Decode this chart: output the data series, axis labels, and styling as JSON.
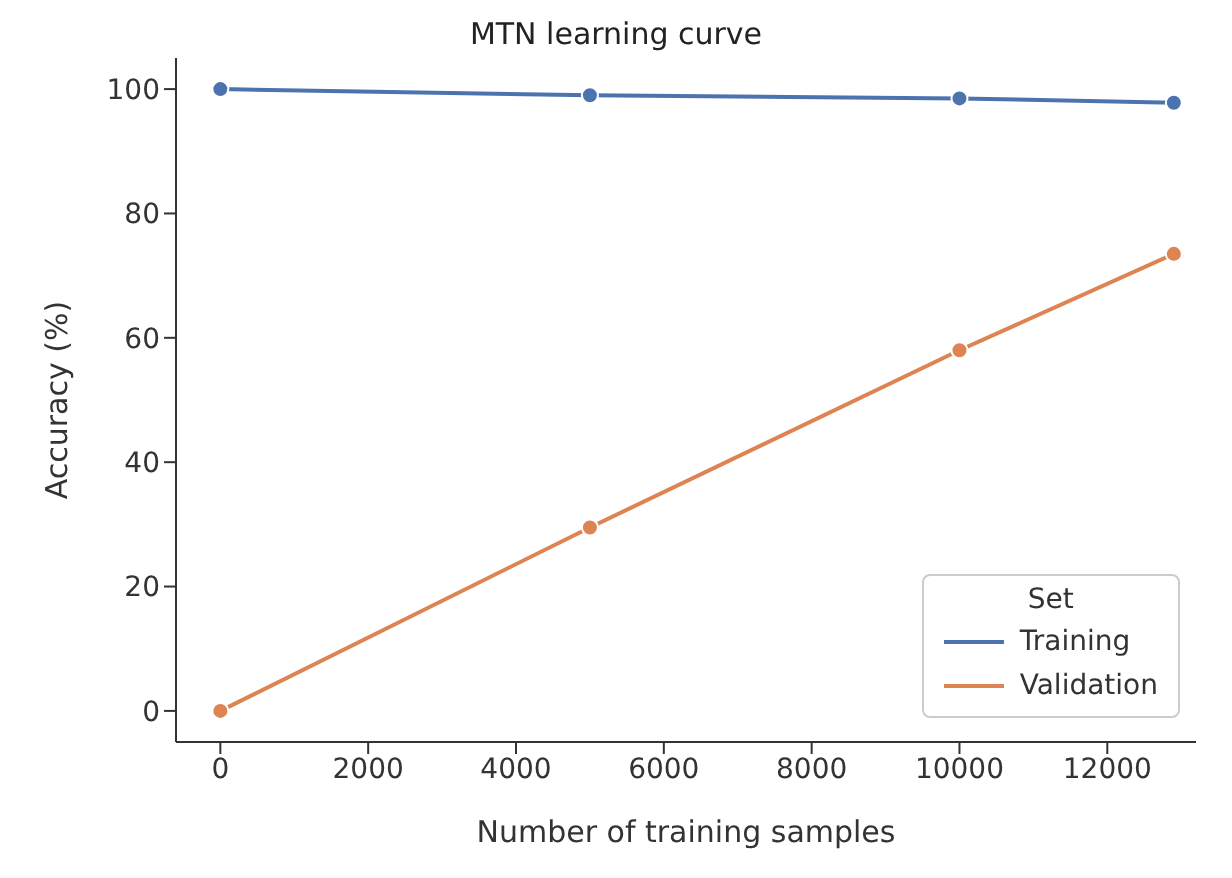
{
  "chart_data": {
    "type": "line",
    "title": "MTN learning curve",
    "xlabel": "Number of training samples",
    "ylabel": "Accuracy (%)",
    "legend_title": "Set",
    "x": [
      0,
      5000,
      10000,
      12900
    ],
    "series": [
      {
        "name": "Training",
        "color": "#4c72b0",
        "values": [
          100,
          99,
          98.5,
          97.8
        ]
      },
      {
        "name": "Validation",
        "color": "#dd8452",
        "values": [
          0,
          29.5,
          58,
          73.5
        ]
      }
    ],
    "xlim": [
      -600,
      13200
    ],
    "xticks": [
      0,
      2000,
      4000,
      6000,
      8000,
      10000,
      12000
    ],
    "ylim": [
      -5,
      105
    ],
    "yticks": [
      0,
      20,
      40,
      60,
      80,
      100
    ],
    "grid": false,
    "legend": "bottom right",
    "marker": "circle",
    "line_style": "solid"
  }
}
